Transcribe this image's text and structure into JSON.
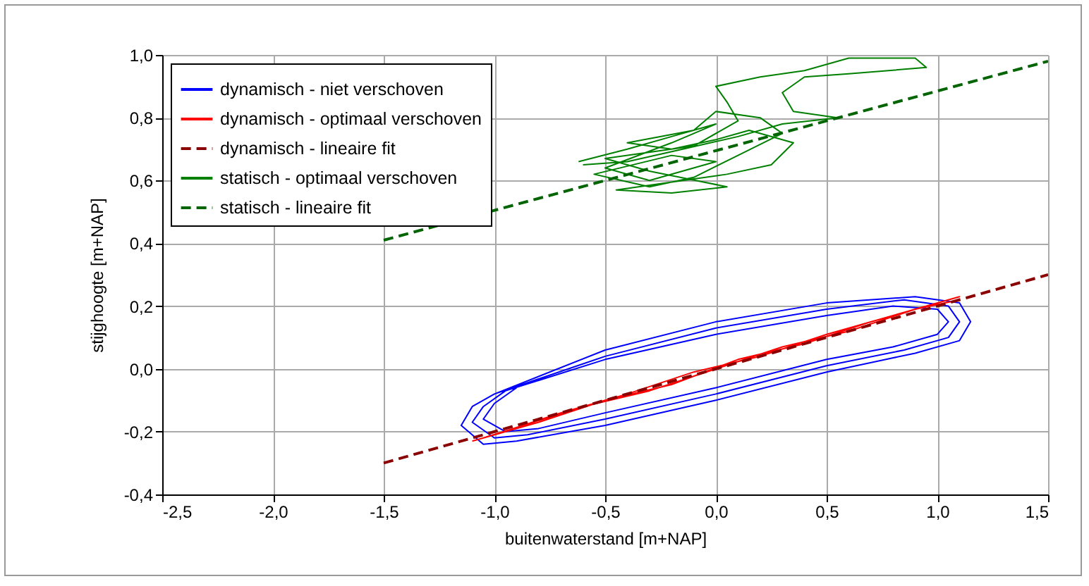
{
  "chart_data": {
    "type": "line",
    "xlabel": "buitenwaterstand  [m+NAP]",
    "ylabel": "stijghoogte  [m+NAP]",
    "xlim": [
      -2.5,
      1.5
    ],
    "ylim": [
      -0.4,
      1.0
    ],
    "xticks": [
      {
        "value": -2.5,
        "label": "-2,5"
      },
      {
        "value": -2,
        "label": "-2,0"
      },
      {
        "value": -1.5,
        "label": "-1,5"
      },
      {
        "value": -1,
        "label": "-1,0"
      },
      {
        "value": -0.5,
        "label": "-0,5"
      },
      {
        "value": 0,
        "label": "0,0"
      },
      {
        "value": 0.5,
        "label": "0,5"
      },
      {
        "value": 1,
        "label": "1,0"
      },
      {
        "value": 1.5,
        "label": "1,5"
      }
    ],
    "yticks": [
      {
        "value": -0.4,
        "label": "-0,4"
      },
      {
        "value": -0.2,
        "label": "-0,2"
      },
      {
        "value": 0,
        "label": "0,0"
      },
      {
        "value": 0.2,
        "label": "0,2"
      },
      {
        "value": 0.4,
        "label": "0,4"
      },
      {
        "value": 0.6,
        "label": "0,6"
      },
      {
        "value": 0.8,
        "label": "0,8"
      },
      {
        "value": 1,
        "label": "1,0"
      }
    ],
    "grid": true,
    "legend": "top left",
    "marker": "none",
    "series": [
      {
        "name": "dynamisch - niet verschoven",
        "color": "#0000ff",
        "line_style": "solid",
        "x": [
          -1.0,
          -0.5,
          0.0,
          0.5,
          0.9,
          1.1,
          1.15,
          1.1,
          0.9,
          0.5,
          0.0,
          -0.5,
          -0.9,
          -1.05,
          -1.15,
          -1.1,
          -1.0,
          -0.5,
          0.0,
          0.5,
          0.85,
          1.05,
          1.1,
          1.05,
          0.85,
          0.5,
          0.0,
          -0.5,
          -0.85,
          -1.0,
          -1.1,
          -1.05,
          -0.95,
          -0.5,
          0.0,
          0.5,
          0.8,
          1.0,
          1.05,
          1.0,
          0.8,
          0.5,
          0.0,
          -0.5,
          -0.8,
          -0.95,
          -1.05,
          -1.0,
          -0.9
        ],
        "values": [
          -0.08,
          0.06,
          0.15,
          0.21,
          0.23,
          0.21,
          0.15,
          0.09,
          0.05,
          -0.01,
          -0.1,
          -0.18,
          -0.23,
          -0.24,
          -0.18,
          -0.12,
          -0.08,
          0.04,
          0.13,
          0.19,
          0.22,
          0.2,
          0.15,
          0.1,
          0.06,
          0.01,
          -0.08,
          -0.16,
          -0.21,
          -0.22,
          -0.17,
          -0.12,
          -0.07,
          0.03,
          0.11,
          0.17,
          0.2,
          0.19,
          0.15,
          0.11,
          0.07,
          0.03,
          -0.06,
          -0.14,
          -0.19,
          -0.2,
          -0.16,
          -0.11,
          -0.06
        ]
      },
      {
        "name": "dynamisch - optimaal verschoven",
        "color": "#ff0000",
        "line_style": "solid",
        "x": [
          -1.1,
          -0.8,
          -0.5,
          -0.2,
          0.1,
          0.4,
          0.7,
          1.0,
          1.1,
          0.8,
          0.5,
          0.2,
          -0.1,
          -0.4,
          -0.7,
          -1.0,
          -1.05,
          -0.6,
          -0.3,
          0.0,
          0.3,
          0.6,
          0.9,
          1.1
        ],
        "values": [
          -0.23,
          -0.17,
          -0.1,
          -0.05,
          0.03,
          0.08,
          0.15,
          0.21,
          0.23,
          0.17,
          0.11,
          0.04,
          -0.01,
          -0.08,
          -0.14,
          -0.21,
          -0.22,
          -0.12,
          -0.07,
          0.0,
          0.07,
          0.12,
          0.19,
          0.22
        ]
      },
      {
        "name": "dynamisch - lineaire fit",
        "color": "#8b0000",
        "line_style": "dashed",
        "x": [
          -1.5,
          1.5
        ],
        "values": [
          -0.3,
          0.3
        ]
      },
      {
        "name": "statisch - optimaal verschoven",
        "color": "#008000",
        "line_style": "solid",
        "x": [
          -0.62,
          -0.4,
          -0.2,
          0.0,
          -0.2,
          -0.5,
          -0.3,
          0.0,
          -0.2,
          -0.55,
          -0.3,
          -0.1,
          0.1,
          0.3,
          0.2,
          0.0,
          -0.1,
          -0.4,
          -0.2,
          0.0,
          0.15,
          0.35,
          0.25,
          0.05,
          -0.45,
          -0.2,
          0.05,
          -0.3,
          -0.5,
          -0.1,
          0.1,
          0.05,
          0.0,
          0.2,
          0.4,
          0.6,
          0.9,
          0.95,
          0.6,
          0.4,
          0.3,
          0.35,
          0.55,
          0.3,
          0.1,
          -0.15,
          -0.4,
          -0.6
        ],
        "values": [
          0.66,
          0.7,
          0.74,
          0.78,
          0.72,
          0.64,
          0.6,
          0.66,
          0.68,
          0.62,
          0.58,
          0.61,
          0.68,
          0.75,
          0.8,
          0.82,
          0.76,
          0.72,
          0.7,
          0.73,
          0.76,
          0.72,
          0.65,
          0.62,
          0.57,
          0.56,
          0.58,
          0.63,
          0.67,
          0.71,
          0.79,
          0.85,
          0.9,
          0.93,
          0.95,
          0.99,
          0.99,
          0.96,
          0.94,
          0.93,
          0.88,
          0.82,
          0.8,
          0.78,
          0.74,
          0.7,
          0.66,
          0.65
        ]
      },
      {
        "name": "statisch - lineaire fit",
        "color": "#006400",
        "line_style": "dashed",
        "x": [
          -1.5,
          1.5
        ],
        "values": [
          0.41,
          0.98
        ]
      }
    ]
  }
}
